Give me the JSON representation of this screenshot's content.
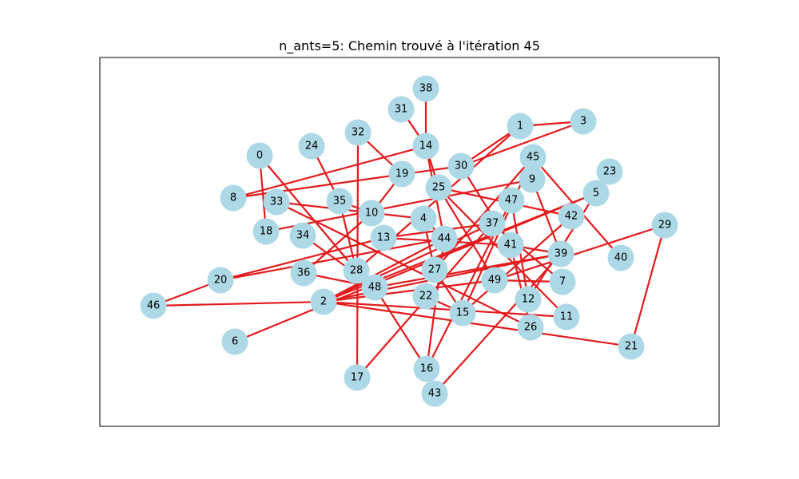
{
  "figure": {
    "title": "n_ants=5: Chemin trouvé à l'itération 45"
  },
  "graph": {
    "node_color": "#add8e6",
    "edge_color": "#e31a1c",
    "nodes": [
      "0",
      "1",
      "2",
      "3",
      "4",
      "5",
      "6",
      "7",
      "8",
      "9",
      "10",
      "11",
      "12",
      "13",
      "14",
      "15",
      "16",
      "17",
      "18",
      "19",
      "20",
      "21",
      "22",
      "23",
      "24",
      "25",
      "26",
      "27",
      "28",
      "29",
      "30",
      "31",
      "32",
      "33",
      "34",
      "35",
      "36",
      "37",
      "38",
      "39",
      "40",
      "41",
      "42",
      "43",
      "44",
      "45",
      "46",
      "47",
      "48",
      "49"
    ],
    "edges": [
      [
        "38",
        "14"
      ],
      [
        "31",
        "14"
      ],
      [
        "14",
        "8"
      ],
      [
        "14",
        "25"
      ],
      [
        "14",
        "44"
      ],
      [
        "1",
        "3"
      ],
      [
        "1",
        "30"
      ],
      [
        "1",
        "28"
      ],
      [
        "3",
        "30"
      ],
      [
        "30",
        "8"
      ],
      [
        "30",
        "41"
      ],
      [
        "45",
        "40"
      ],
      [
        "45",
        "15"
      ],
      [
        "32",
        "17"
      ],
      [
        "32",
        "19"
      ],
      [
        "24",
        "35"
      ],
      [
        "35",
        "10"
      ],
      [
        "35",
        "28"
      ],
      [
        "0",
        "18"
      ],
      [
        "0",
        "28"
      ],
      [
        "19",
        "10"
      ],
      [
        "10",
        "36"
      ],
      [
        "9",
        "39"
      ],
      [
        "9",
        "18"
      ],
      [
        "23",
        "12"
      ],
      [
        "5",
        "2"
      ],
      [
        "5",
        "6"
      ],
      [
        "47",
        "16"
      ],
      [
        "47",
        "12"
      ],
      [
        "42",
        "15"
      ],
      [
        "42",
        "25"
      ],
      [
        "29",
        "21"
      ],
      [
        "29",
        "49"
      ],
      [
        "25",
        "11"
      ],
      [
        "25",
        "49"
      ],
      [
        "33",
        "4"
      ],
      [
        "33",
        "26"
      ],
      [
        "4",
        "44"
      ],
      [
        "4",
        "27"
      ],
      [
        "34",
        "48"
      ],
      [
        "13",
        "20"
      ],
      [
        "13",
        "41"
      ],
      [
        "13",
        "37"
      ],
      [
        "37",
        "2"
      ],
      [
        "37",
        "7"
      ],
      [
        "37",
        "17"
      ],
      [
        "44",
        "20"
      ],
      [
        "44",
        "16"
      ],
      [
        "44",
        "2"
      ],
      [
        "41",
        "39"
      ],
      [
        "41",
        "26"
      ],
      [
        "39",
        "43"
      ],
      [
        "39",
        "48"
      ],
      [
        "39",
        "2"
      ],
      [
        "49",
        "7"
      ],
      [
        "49",
        "2"
      ],
      [
        "46",
        "2"
      ],
      [
        "46",
        "20"
      ],
      [
        "2",
        "11"
      ],
      [
        "2",
        "21"
      ],
      [
        "48",
        "16"
      ],
      [
        "48",
        "36"
      ],
      [
        "27",
        "15"
      ],
      [
        "27",
        "45"
      ],
      [
        "22",
        "15"
      ]
    ]
  }
}
